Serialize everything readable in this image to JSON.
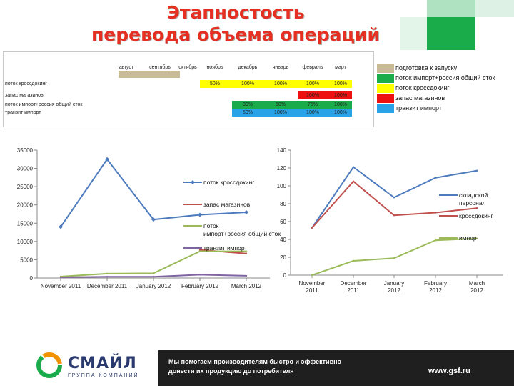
{
  "title_line1": "Этапностость",
  "title_line2": "перевода объема операций",
  "table": {
    "columns": [
      "август",
      "сентябрь",
      "октябрь",
      "ноябрь",
      "декабрь",
      "январь",
      "февраль",
      "март"
    ],
    "row_labels": [
      "поток кроссдокинг",
      "запас магазинов",
      "поток импорт+россия общий сток",
      "транзит импорт"
    ],
    "cells": [
      [
        "",
        "",
        "",
        "50%",
        "100%",
        "100%",
        "100%",
        "100%"
      ],
      [
        "",
        "",
        "",
        "",
        "",
        "",
        "100%",
        "100%"
      ],
      [
        "",
        "",
        "",
        "",
        "30%",
        "50%",
        "75%",
        "100%"
      ],
      [
        "",
        "",
        "",
        "",
        "50%",
        "100%",
        "100%",
        "100%"
      ]
    ],
    "colors": {
      "tan": "#c8bb98",
      "yellow": "#ffff00",
      "red": "#ee1111",
      "green": "#1aab4a",
      "blue": "#29a3e8"
    }
  },
  "top_legend": [
    {
      "label": "подготовка к запуску",
      "color": "#c8bb98"
    },
    {
      "label": "поток импорт+россия общий сток",
      "color": "#1aab4a"
    },
    {
      "label": "поток кроссдокинг",
      "color": "#ffff00"
    },
    {
      "label": "запас магазинов",
      "color": "#ee1111"
    },
    {
      "label": "транзит импорт",
      "color": "#29a3e8"
    }
  ],
  "chart_data": [
    {
      "type": "line",
      "categories": [
        "November 2011",
        "December 2011",
        "January 2012",
        "February 2012",
        "March 2012"
      ],
      "ylim": [
        0,
        35000
      ],
      "yticks": [
        0,
        5000,
        10000,
        15000,
        20000,
        25000,
        30000,
        35000
      ],
      "legend_position": "right",
      "series": [
        {
          "name": "поток кроссдокинг",
          "color": "#4d7bbd",
          "marker": "diamond",
          "values": [
            14000,
            32500,
            16000,
            17300,
            18000
          ]
        },
        {
          "name": "запас магазинов",
          "color": "#c0504d",
          "values": [
            null,
            null,
            null,
            7700,
            6700
          ]
        },
        {
          "name": "поток импорт+россия общий сток",
          "color": "#9bbb59",
          "values": [
            400,
            1200,
            1300,
            7300,
            7300
          ]
        },
        {
          "name": "транзит импорт",
          "color": "#8064a2",
          "values": [
            200,
            350,
            350,
            900,
            600
          ]
        }
      ]
    },
    {
      "type": "line",
      "categories": [
        "November 2011",
        "December 2011",
        "January 2012",
        "February 2012",
        "March 2012"
      ],
      "ylim": [
        0,
        140
      ],
      "yticks": [
        0,
        20,
        40,
        60,
        80,
        100,
        120,
        140
      ],
      "legend_position": "right",
      "series": [
        {
          "name": "складской персонал",
          "color": "#4d7bbd",
          "values": [
            53,
            121,
            87,
            109,
            117
          ]
        },
        {
          "name": "кроссдокинг",
          "color": "#c0504d",
          "values": [
            53,
            105,
            67,
            70,
            75
          ]
        },
        {
          "name": "импорт",
          "color": "#9bbb59",
          "values": [
            0,
            16,
            19,
            39,
            41
          ]
        }
      ]
    }
  ],
  "footer": {
    "logo": "СМАЙЛ",
    "logo_sub": "ГРУППА КОМПАНИЙ",
    "slogan1": "Мы помогаем производителям быстро и эффективно",
    "slogan2": "донести их продукцию до потребителя",
    "site": "www.gsf.ru"
  }
}
